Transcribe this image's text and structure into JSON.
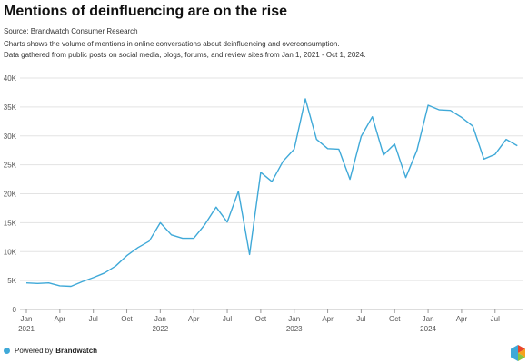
{
  "header": {
    "title": "Mentions of deinfluencing are on the rise",
    "source": "Source: Brandwatch Consumer Research",
    "desc_line1": "Charts shows the volume of mentions in online conversations about deinfluencing and overconsumption.",
    "desc_line2": "Data gathered from public posts on social media, blogs, forums, and review sites from Jan 1, 2021 - Oct 1, 2024."
  },
  "footer": {
    "powered_by": "Powered by",
    "brand": "Brandwatch"
  },
  "colors": {
    "line": "#3fa9d8",
    "grid": "#e3e3e3",
    "axis": "#555555",
    "logo": [
      "#e8452c",
      "#f7a21b",
      "#8ac43f",
      "#3fa9d8"
    ]
  },
  "chart_data": {
    "type": "line",
    "title": "Mentions of deinfluencing are on the rise",
    "xlabel": "",
    "ylabel": "",
    "ylim": [
      0,
      40000
    ],
    "y_ticks": [
      0,
      5000,
      10000,
      15000,
      20000,
      25000,
      30000,
      35000,
      40000
    ],
    "y_tick_labels": [
      "0",
      "5K",
      "10K",
      "15K",
      "20K",
      "25K",
      "30K",
      "35K",
      "40K"
    ],
    "x_tick_labels": [
      {
        "month": "Jan",
        "year": "2021"
      },
      {
        "month": "Apr",
        "year": ""
      },
      {
        "month": "Jul",
        "year": ""
      },
      {
        "month": "Oct",
        "year": ""
      },
      {
        "month": "Jan",
        "year": "2022"
      },
      {
        "month": "Apr",
        "year": ""
      },
      {
        "month": "Jul",
        "year": ""
      },
      {
        "month": "Oct",
        "year": ""
      },
      {
        "month": "Jan",
        "year": "2023"
      },
      {
        "month": "Apr",
        "year": ""
      },
      {
        "month": "Jul",
        "year": ""
      },
      {
        "month": "Oct",
        "year": ""
      },
      {
        "month": "Jan",
        "year": "2024"
      },
      {
        "month": "Apr",
        "year": ""
      },
      {
        "month": "Jul",
        "year": ""
      }
    ],
    "x_tick_months": [
      "2021-01",
      "2021-04",
      "2021-07",
      "2021-10",
      "2022-01",
      "2022-04",
      "2022-07",
      "2022-10",
      "2023-01",
      "2023-04",
      "2023-07",
      "2023-10",
      "2024-01",
      "2024-04",
      "2024-07"
    ],
    "grid": true,
    "legend": "none",
    "series": [
      {
        "x": [
          "2021-01",
          "2021-02",
          "2021-03",
          "2021-04",
          "2021-05",
          "2021-06",
          "2021-07",
          "2021-08",
          "2021-09",
          "2021-10",
          "2021-11",
          "2021-12",
          "2022-01",
          "2022-02",
          "2022-03",
          "2022-04",
          "2022-05",
          "2022-06",
          "2022-07",
          "2022-08",
          "2022-09",
          "2022-10",
          "2022-11",
          "2022-12",
          "2023-01",
          "2023-02",
          "2023-03",
          "2023-04",
          "2023-05",
          "2023-06",
          "2023-07",
          "2023-08",
          "2023-09",
          "2023-10",
          "2023-11",
          "2023-12",
          "2024-01",
          "2024-02",
          "2024-03",
          "2024-04",
          "2024-05",
          "2024-06",
          "2024-07",
          "2024-08",
          "2024-09",
          "2024-10"
        ],
        "values": [
          4600,
          4500,
          4600,
          4100,
          4000,
          4800,
          5500,
          6300,
          7500,
          9300,
          10700,
          11800,
          15000,
          12900,
          12300,
          12300,
          14700,
          17700,
          15100,
          20400,
          9500,
          23700,
          22100,
          25600,
          27700,
          36400,
          29400,
          27800,
          27700,
          22500,
          29900,
          33300,
          26700,
          28600,
          22800,
          27500,
          35300,
          34500,
          34400,
          33200,
          31700,
          26000,
          26800,
          29400,
          28300,
          null
        ]
      }
    ]
  }
}
